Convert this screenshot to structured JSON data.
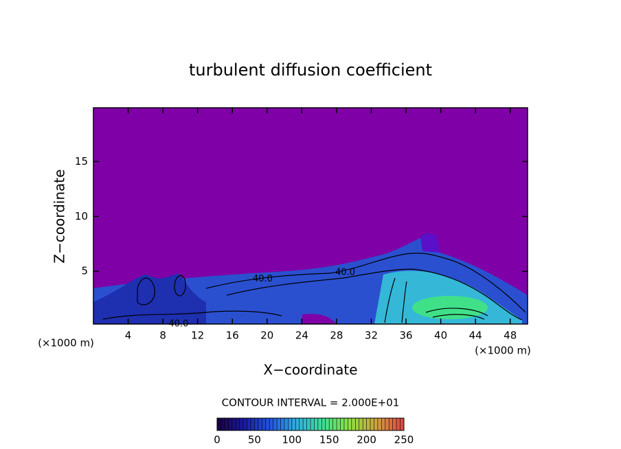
{
  "chart_data": {
    "type": "contour",
    "title": "turbulent diffusion coefficient",
    "x_label": "X−coordinate",
    "y_label": "Z−coordinate",
    "x_unit_label": "(×1000 m)",
    "xlim": [
      0,
      50
    ],
    "xticks": [
      4,
      8,
      12,
      16,
      20,
      24,
      28,
      32,
      36,
      40,
      44,
      48
    ],
    "ylim": [
      0.2,
      19.9
    ],
    "yticks": [
      5,
      10,
      15
    ],
    "background_color": "#7f00a6",
    "contour_interval_label": "CONTOUR INTERVAL = 2.000E+01",
    "colorbar": {
      "lim": [
        0,
        250
      ],
      "ticks": [
        0,
        50,
        100,
        150,
        200,
        250
      ],
      "colors": [
        "#1a0040",
        "#1a1aa0",
        "#2255e0",
        "#30b0e0",
        "#40e090",
        "#90e040",
        "#d0a040",
        "#e04040"
      ]
    },
    "annotations": [
      {
        "text": "40.0",
        "x": 19.5,
        "y": 4.3
      },
      {
        "text": "40.0",
        "x": 29,
        "y": 4.9
      },
      {
        "text": "40.0",
        "x": 9.8,
        "y": 0.2
      }
    ]
  }
}
